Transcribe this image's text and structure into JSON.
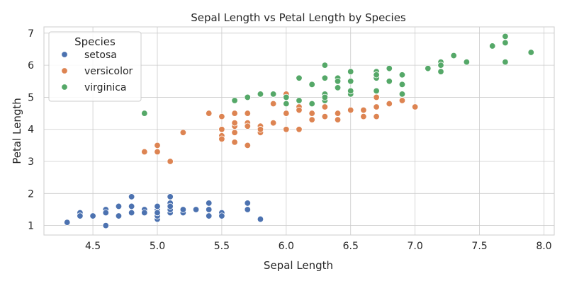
{
  "chart_data": {
    "type": "scatter",
    "title": "Sepal Length vs Petal Length by Species",
    "xlabel": "Sepal Length",
    "ylabel": "Petal Length",
    "xlim": [
      4.12,
      8.08
    ],
    "ylim": [
      0.705,
      7.195
    ],
    "xticks": [
      4.5,
      5.0,
      5.5,
      6.0,
      6.5,
      7.0,
      7.5,
      8.0
    ],
    "xtick_labels": [
      "4.5",
      "5.0",
      "5.5",
      "6.0",
      "6.5",
      "7.0",
      "7.5",
      "8.0"
    ],
    "yticks": [
      1,
      2,
      3,
      4,
      5,
      6,
      7
    ],
    "ytick_labels": [
      "1",
      "2",
      "3",
      "4",
      "5",
      "6",
      "7"
    ],
    "grid": true,
    "legend": {
      "title": "Species",
      "position": "top-left"
    },
    "series": [
      {
        "name": "setosa",
        "color": "#4c72b0",
        "points": [
          [
            5.1,
            1.4
          ],
          [
            4.9,
            1.4
          ],
          [
            4.7,
            1.3
          ],
          [
            4.6,
            1.5
          ],
          [
            5.0,
            1.4
          ],
          [
            5.4,
            1.7
          ],
          [
            4.6,
            1.4
          ],
          [
            5.0,
            1.5
          ],
          [
            4.4,
            1.4
          ],
          [
            4.9,
            1.5
          ],
          [
            5.4,
            1.5
          ],
          [
            4.8,
            1.6
          ],
          [
            4.8,
            1.4
          ],
          [
            4.3,
            1.1
          ],
          [
            5.8,
            1.2
          ],
          [
            5.7,
            1.5
          ],
          [
            5.4,
            1.3
          ],
          [
            5.1,
            1.4
          ],
          [
            5.7,
            1.7
          ],
          [
            5.1,
            1.5
          ],
          [
            5.4,
            1.7
          ],
          [
            5.1,
            1.5
          ],
          [
            4.6,
            1.0
          ],
          [
            5.1,
            1.7
          ],
          [
            4.8,
            1.9
          ],
          [
            5.0,
            1.6
          ],
          [
            5.0,
            1.6
          ],
          [
            5.2,
            1.5
          ],
          [
            5.2,
            1.4
          ],
          [
            4.7,
            1.6
          ],
          [
            4.8,
            1.6
          ],
          [
            5.4,
            1.5
          ],
          [
            5.2,
            1.5
          ],
          [
            5.5,
            1.4
          ],
          [
            4.9,
            1.5
          ],
          [
            5.0,
            1.2
          ],
          [
            5.5,
            1.3
          ],
          [
            4.9,
            1.4
          ],
          [
            4.4,
            1.3
          ],
          [
            5.1,
            1.5
          ],
          [
            5.0,
            1.3
          ],
          [
            4.5,
            1.3
          ],
          [
            4.4,
            1.3
          ],
          [
            5.0,
            1.6
          ],
          [
            5.1,
            1.9
          ],
          [
            4.8,
            1.4
          ],
          [
            5.1,
            1.6
          ],
          [
            4.6,
            1.4
          ],
          [
            5.3,
            1.5
          ],
          [
            5.0,
            1.4
          ]
        ]
      },
      {
        "name": "versicolor",
        "color": "#dd8452",
        "points": [
          [
            7.0,
            4.7
          ],
          [
            6.4,
            4.5
          ],
          [
            6.9,
            4.9
          ],
          [
            5.5,
            4.0
          ],
          [
            6.5,
            4.6
          ],
          [
            5.7,
            4.5
          ],
          [
            6.3,
            4.7
          ],
          [
            4.9,
            3.3
          ],
          [
            6.6,
            4.6
          ],
          [
            5.2,
            3.9
          ],
          [
            5.0,
            3.5
          ],
          [
            5.9,
            4.2
          ],
          [
            6.0,
            4.0
          ],
          [
            6.1,
            4.7
          ],
          [
            5.6,
            3.6
          ],
          [
            6.7,
            4.4
          ],
          [
            5.6,
            4.5
          ],
          [
            5.8,
            4.1
          ],
          [
            6.2,
            4.5
          ],
          [
            5.6,
            3.9
          ],
          [
            5.9,
            4.8
          ],
          [
            6.1,
            4.0
          ],
          [
            6.3,
            4.9
          ],
          [
            6.1,
            4.7
          ],
          [
            6.4,
            4.3
          ],
          [
            6.6,
            4.4
          ],
          [
            6.8,
            4.8
          ],
          [
            6.7,
            5.0
          ],
          [
            6.0,
            4.5
          ],
          [
            5.7,
            3.5
          ],
          [
            5.5,
            3.8
          ],
          [
            5.5,
            3.7
          ],
          [
            5.8,
            3.9
          ],
          [
            6.0,
            5.1
          ],
          [
            5.4,
            4.5
          ],
          [
            6.0,
            4.5
          ],
          [
            6.7,
            4.7
          ],
          [
            6.3,
            4.4
          ],
          [
            5.6,
            4.1
          ],
          [
            5.5,
            4.0
          ],
          [
            5.5,
            4.4
          ],
          [
            6.1,
            4.6
          ],
          [
            5.8,
            4.0
          ],
          [
            5.0,
            3.3
          ],
          [
            5.6,
            4.2
          ],
          [
            5.7,
            4.2
          ],
          [
            5.7,
            4.2
          ],
          [
            6.2,
            4.3
          ],
          [
            5.1,
            3.0
          ],
          [
            5.7,
            4.1
          ]
        ]
      },
      {
        "name": "virginica",
        "color": "#55a868",
        "points": [
          [
            6.3,
            6.0
          ],
          [
            5.8,
            5.1
          ],
          [
            7.1,
            5.9
          ],
          [
            6.3,
            5.6
          ],
          [
            6.5,
            5.8
          ],
          [
            7.6,
            6.6
          ],
          [
            4.9,
            4.5
          ],
          [
            7.3,
            6.3
          ],
          [
            6.7,
            5.8
          ],
          [
            7.2,
            6.1
          ],
          [
            6.5,
            5.1
          ],
          [
            6.4,
            5.3
          ],
          [
            6.8,
            5.5
          ],
          [
            5.7,
            5.0
          ],
          [
            5.8,
            5.1
          ],
          [
            6.4,
            5.3
          ],
          [
            6.5,
            5.5
          ],
          [
            7.7,
            6.7
          ],
          [
            7.7,
            6.9
          ],
          [
            6.0,
            5.0
          ],
          [
            6.9,
            5.7
          ],
          [
            5.6,
            4.9
          ],
          [
            7.7,
            6.7
          ],
          [
            6.3,
            4.9
          ],
          [
            6.7,
            5.7
          ],
          [
            7.2,
            6.0
          ],
          [
            6.2,
            4.8
          ],
          [
            6.1,
            4.9
          ],
          [
            6.4,
            5.6
          ],
          [
            7.2,
            5.8
          ],
          [
            7.4,
            6.1
          ],
          [
            7.9,
            6.4
          ],
          [
            6.4,
            5.6
          ],
          [
            6.3,
            5.1
          ],
          [
            6.1,
            5.6
          ],
          [
            7.7,
            6.1
          ],
          [
            6.3,
            5.6
          ],
          [
            6.4,
            5.5
          ],
          [
            6.0,
            4.8
          ],
          [
            6.9,
            5.4
          ],
          [
            6.7,
            5.6
          ],
          [
            6.9,
            5.1
          ],
          [
            5.8,
            5.1
          ],
          [
            6.8,
            5.9
          ],
          [
            6.7,
            5.7
          ],
          [
            6.7,
            5.2
          ],
          [
            6.3,
            5.0
          ],
          [
            6.5,
            5.2
          ],
          [
            6.2,
            5.4
          ],
          [
            5.9,
            5.1
          ]
        ]
      }
    ]
  }
}
